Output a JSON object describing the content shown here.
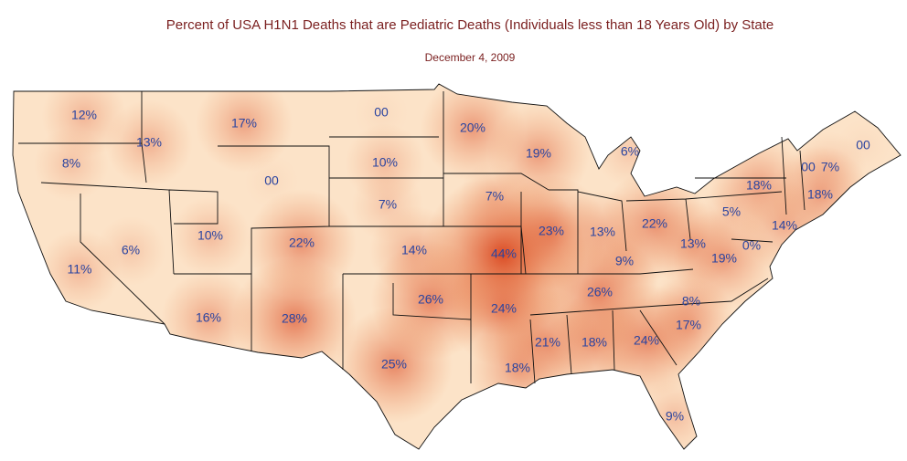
{
  "title": "Percent of USA H1N1 Deaths that are Pediatric Deaths (Individuals less than 18 Years Old) by State",
  "subtitle": "December 4, 2009",
  "states": [
    {
      "label": "12%",
      "value": 12
    },
    {
      "label": "8%",
      "value": 8
    },
    {
      "label": "11%",
      "value": 11
    },
    {
      "label": "6%",
      "value": 6
    },
    {
      "label": "13%",
      "value": 13
    },
    {
      "label": "17%",
      "value": 17
    },
    {
      "label": "00",
      "value": 0
    },
    {
      "label": "10%",
      "value": 10
    },
    {
      "label": "16%",
      "value": 16
    },
    {
      "label": "22%",
      "value": 22
    },
    {
      "label": "28%",
      "value": 28
    },
    {
      "label": "00",
      "value": 0
    },
    {
      "label": "10%",
      "value": 10
    },
    {
      "label": "7%",
      "value": 7
    },
    {
      "label": "14%",
      "value": 14
    },
    {
      "label": "26%",
      "value": 26
    },
    {
      "label": "25%",
      "value": 25
    },
    {
      "label": "20%",
      "value": 20
    },
    {
      "label": "7%",
      "value": 7
    },
    {
      "label": "44%",
      "value": 44
    },
    {
      "label": "24%",
      "value": 24
    },
    {
      "label": "18%",
      "value": 18
    },
    {
      "label": "19%",
      "value": 19
    },
    {
      "label": "23%",
      "value": 23
    },
    {
      "label": "6%",
      "value": 6
    },
    {
      "label": "13%",
      "value": 13
    },
    {
      "label": "22%",
      "value": 22
    },
    {
      "label": "9%",
      "value": 9
    },
    {
      "label": "26%",
      "value": 26
    },
    {
      "label": "21%",
      "value": 21
    },
    {
      "label": "18%",
      "value": 18
    },
    {
      "label": "24%",
      "value": 24
    },
    {
      "label": "9%",
      "value": 9
    },
    {
      "label": "17%",
      "value": 17
    },
    {
      "label": "8%",
      "value": 8
    },
    {
      "label": "19%",
      "value": 19
    },
    {
      "label": "13%",
      "value": 13
    },
    {
      "label": "5%",
      "value": 5
    },
    {
      "label": "18%",
      "value": 18
    },
    {
      "label": "00",
      "value": 0
    },
    {
      "label": "00",
      "value": 0
    },
    {
      "label": "7%",
      "value": 7
    },
    {
      "label": "18%",
      "value": 18
    },
    {
      "label": "14%",
      "value": 14
    },
    {
      "label": "0%",
      "value": 0
    }
  ]
}
